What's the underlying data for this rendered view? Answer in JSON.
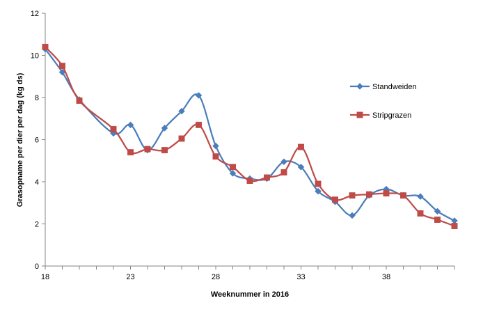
{
  "chart_data": {
    "type": "line",
    "xlabel": "Weeknummer in 2016",
    "ylabel": "Grasopname per dier per dag (kg ds)",
    "xlim": [
      18,
      42
    ],
    "ylim": [
      0,
      12
    ],
    "x_ticks": [
      18,
      23,
      28,
      33,
      38
    ],
    "y_ticks": [
      0,
      2,
      4,
      6,
      8,
      10,
      12
    ],
    "grid": "none",
    "legend_position": "right",
    "x": [
      18,
      19,
      20,
      22,
      23,
      24,
      25,
      26,
      27,
      28,
      29,
      30,
      31,
      32,
      33,
      34,
      35,
      36,
      37,
      38,
      39,
      40,
      41,
      42
    ],
    "series": [
      {
        "name": "Standweiden",
        "color": "#4a7ebb",
        "marker": "diamond",
        "values": [
          10.3,
          9.2,
          7.9,
          6.3,
          6.7,
          5.5,
          6.55,
          7.35,
          8.1,
          5.7,
          4.4,
          4.15,
          4.15,
          4.95,
          4.7,
          3.55,
          3.05,
          2.4,
          3.35,
          3.65,
          3.35,
          3.3,
          2.6,
          2.15
        ]
      },
      {
        "name": "Stripgrazen",
        "color": "#be4b48",
        "marker": "square",
        "values": [
          10.4,
          9.5,
          7.85,
          6.5,
          5.4,
          5.55,
          5.5,
          6.05,
          6.7,
          5.2,
          4.7,
          4.05,
          4.2,
          4.45,
          5.65,
          3.9,
          3.15,
          3.35,
          3.4,
          3.45,
          3.35,
          2.5,
          2.2,
          1.9
        ]
      }
    ]
  }
}
